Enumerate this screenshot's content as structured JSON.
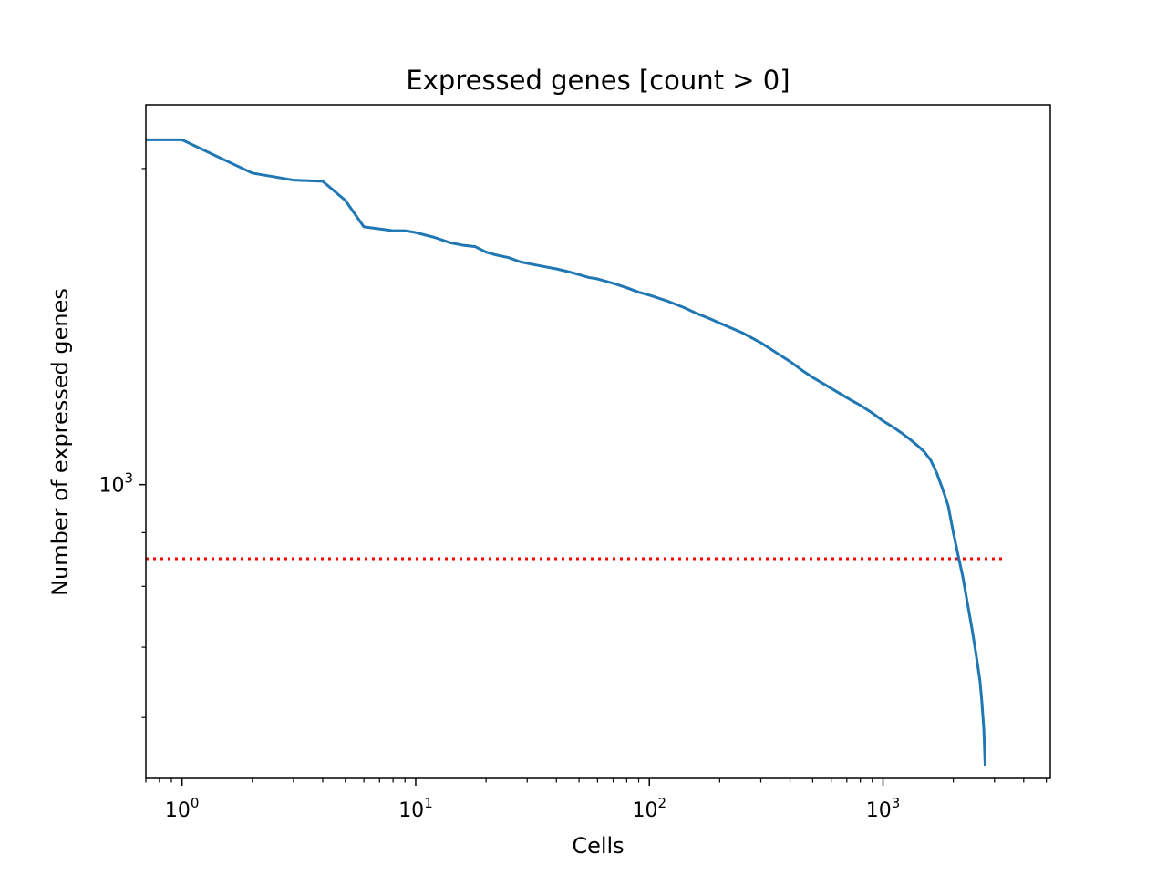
{
  "chart_data": {
    "type": "line",
    "title": "Expressed genes [count > 0]",
    "xlabel": "Cells",
    "ylabel": "Number of expressed genes",
    "xscale": "log",
    "yscale": "log",
    "xlim": [
      0.7,
      5200
    ],
    "ylim": [
      525,
      2300
    ],
    "x_ticks": [
      {
        "value": 1,
        "base": "10",
        "exp": "0"
      },
      {
        "value": 10,
        "base": "10",
        "exp": "1"
      },
      {
        "value": 100,
        "base": "10",
        "exp": "2"
      },
      {
        "value": 1000,
        "base": "10",
        "exp": "3"
      }
    ],
    "y_ticks": [
      {
        "value": 1000,
        "base": "10",
        "exp": "3"
      }
    ],
    "grid": false,
    "series": [
      {
        "color": "#1f77b4",
        "x": [
          0.7,
          1,
          2,
          3,
          4,
          5,
          6,
          7,
          8,
          9,
          10,
          12,
          14,
          16,
          18,
          20,
          22,
          25,
          28,
          32,
          36,
          40,
          45,
          50,
          55,
          60,
          70,
          80,
          90,
          100,
          120,
          140,
          160,
          180,
          200,
          250,
          300,
          350,
          400,
          450,
          500,
          600,
          700,
          800,
          900,
          1000,
          1100,
          1200,
          1300,
          1400,
          1500,
          1600,
          1700,
          1800,
          1900,
          2000,
          2100,
          2200,
          2300,
          2400,
          2500,
          2600,
          2650,
          2700,
          2720,
          2735
        ],
        "y": [
          2130,
          2130,
          1980,
          1950,
          1945,
          1865,
          1760,
          1752,
          1745,
          1745,
          1738,
          1720,
          1700,
          1690,
          1685,
          1665,
          1655,
          1645,
          1630,
          1620,
          1612,
          1605,
          1595,
          1585,
          1575,
          1570,
          1555,
          1540,
          1525,
          1515,
          1495,
          1475,
          1455,
          1440,
          1425,
          1395,
          1365,
          1335,
          1310,
          1285,
          1265,
          1235,
          1210,
          1190,
          1170,
          1150,
          1135,
          1120,
          1105,
          1090,
          1075,
          1055,
          1025,
          990,
          955,
          900,
          855,
          815,
          770,
          730,
          690,
          650,
          620,
          585,
          560,
          540
        ]
      }
    ],
    "threshold": {
      "y": 850,
      "x_range": [
        0.7,
        3400
      ],
      "color": "#ff0000",
      "style": "dotted"
    }
  }
}
